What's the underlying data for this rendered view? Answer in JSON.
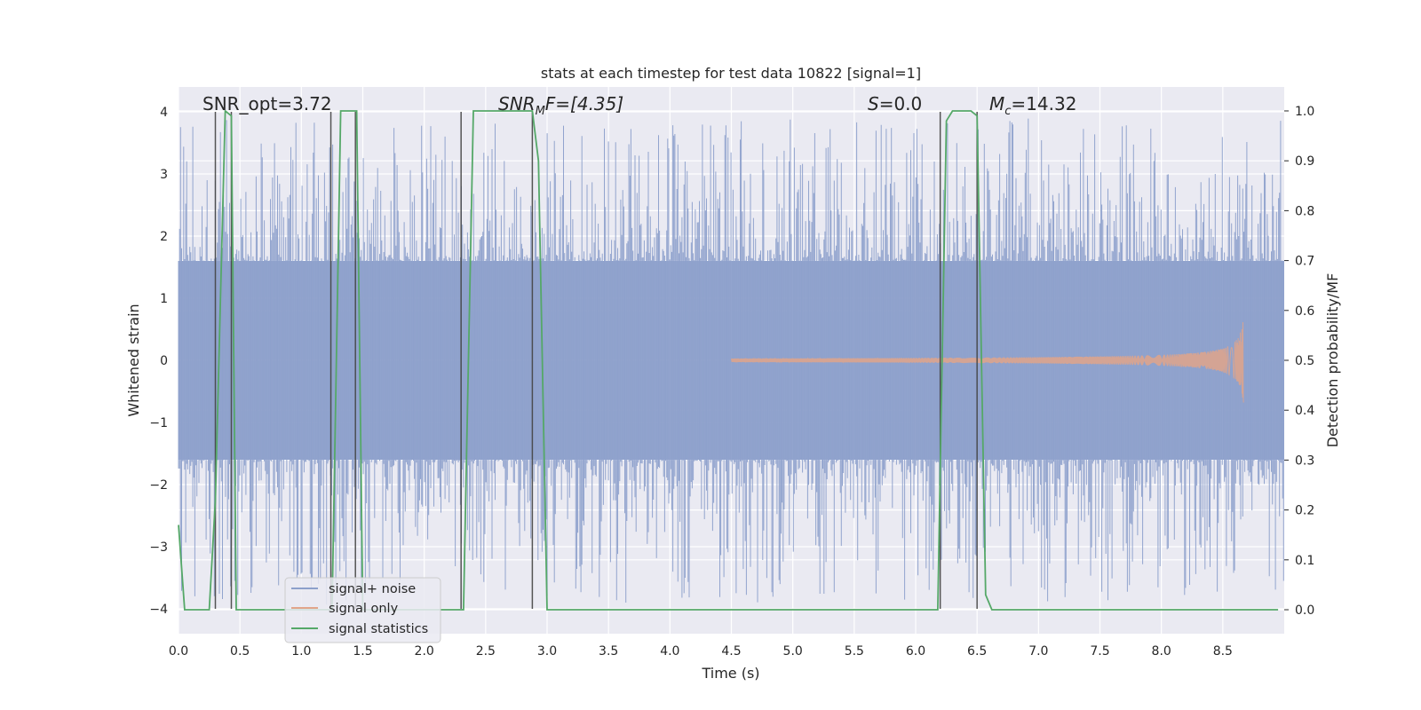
{
  "chart_data": {
    "type": "line",
    "title": "stats at each timestep for test data 10822 [signal=1]",
    "xlabel": "Time (s)",
    "ylabel": "Whitened strain",
    "ylabel_right": "Detection probability/MF",
    "xlim": [
      0.0,
      9.0
    ],
    "ylim": [
      -4.4,
      4.4
    ],
    "ylim_right": [
      -0.048,
      1.048
    ],
    "x_ticks": [
      "0.0",
      "0.5",
      "1.0",
      "1.5",
      "2.0",
      "2.5",
      "3.0",
      "3.5",
      "4.0",
      "4.5",
      "5.0",
      "5.5",
      "6.0",
      "6.5",
      "7.0",
      "7.5",
      "8.0",
      "8.5"
    ],
    "y_ticks": [
      "−4",
      "−3",
      "−2",
      "−1",
      "0",
      "1",
      "2",
      "3",
      "4"
    ],
    "y_ticks_right": [
      "0.0",
      "0.1",
      "0.2",
      "0.3",
      "0.4",
      "0.5",
      "0.6",
      "0.7",
      "0.8",
      "0.9",
      "1.0"
    ],
    "grid": true,
    "legend_position": "lower-left",
    "annotations": {
      "snr_opt": "SNR_opt=3.72",
      "snr_mf": "SNR",
      "snr_mf_sub": "M",
      "snr_mf_rest": "F=[4.35]",
      "s_var": "S",
      "s_rest": "=0.0",
      "mc_var": "M",
      "mc_sub": "c",
      "mc_rest": "=14.32"
    },
    "series": [
      {
        "name": "signal+ noise",
        "color": "#8da0cb",
        "description_values": "dense whitened noise, envelope approx ±1.6 with spikes reaching ±4",
        "envelope": [
          [
            0.0,
            1.6
          ],
          [
            9.0,
            1.6
          ]
        ]
      },
      {
        "name": "signal only",
        "color": "#e1a58a",
        "chirp": {
          "start": 4.5,
          "end": 8.67,
          "peak_amplitude": 0.75
        }
      },
      {
        "name": "signal statistics",
        "color": "#55a868",
        "x": [
          0.0,
          0.05,
          0.1,
          0.25,
          0.3,
          0.38,
          0.43,
          0.47,
          0.5,
          1.25,
          1.32,
          1.45,
          1.5,
          2.3,
          2.32,
          2.4,
          2.88,
          2.93,
          3.0,
          6.18,
          6.25,
          6.3,
          6.45,
          6.5,
          6.57,
          6.62,
          8.95
        ],
        "y": [
          0.17,
          0.0,
          0.0,
          0.0,
          0.22,
          1.0,
          0.99,
          0.0,
          0.0,
          0.0,
          1.0,
          1.0,
          0.0,
          0.0,
          0.0,
          1.0,
          1.0,
          0.9,
          0.0,
          0.0,
          0.98,
          1.0,
          1.0,
          0.99,
          0.03,
          0.0,
          0.0
        ]
      }
    ],
    "vertical_lines_x": [
      0.3,
      0.43,
      1.24,
      1.44,
      2.3,
      2.88,
      6.2,
      6.5
    ],
    "legend": [
      "signal+ noise",
      "signal only",
      "signal statistics"
    ]
  },
  "colors": {
    "plot_bg": "#eaeaf2",
    "grid": "#ffffff",
    "noise": "#8da0cb",
    "signal": "#e1a58a",
    "stat": "#55a868",
    "vline": "#444444"
  }
}
